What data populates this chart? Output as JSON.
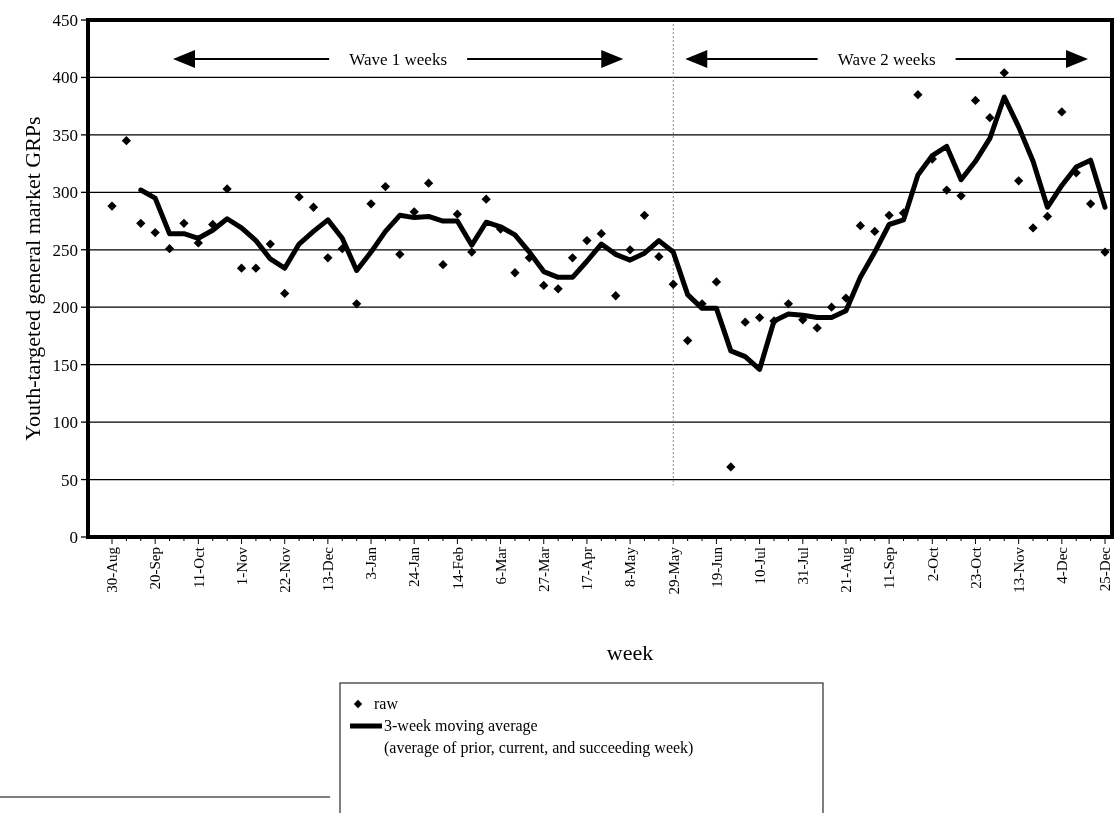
{
  "chart_data": {
    "type": "scatter",
    "xlabel": "week",
    "ylabel": "Youth-targeted general market GRPs",
    "categories": [
      "30-Aug",
      null,
      null,
      "20-Sep",
      null,
      null,
      "11-Oct",
      null,
      null,
      "1-Nov",
      null,
      null,
      "22-Nov",
      null,
      null,
      "13-Dec",
      null,
      null,
      "3-Jan",
      null,
      null,
      "24-Jan",
      null,
      null,
      "14-Feb",
      null,
      null,
      "6-Mar",
      null,
      null,
      "27-Mar",
      null,
      null,
      "17-Apr",
      null,
      null,
      "8-May",
      null,
      null,
      "29-May",
      null,
      null,
      "19-Jun",
      null,
      null,
      "10-Jul",
      null,
      null,
      "31-Jul",
      null,
      null,
      "21-Aug",
      null,
      null,
      "11-Sep",
      null,
      null,
      "2-Oct",
      null,
      null,
      "23-Oct",
      null,
      null,
      "13-Nov",
      null,
      null,
      "4-Dec",
      null,
      null,
      "25-Dec"
    ],
    "series": [
      {
        "name": "raw",
        "marker": "diamond",
        "color": "#000000",
        "values": [
          288,
          345,
          273,
          265,
          251,
          273,
          256,
          272,
          303,
          234,
          234,
          255,
          212,
          296,
          287,
          243,
          251,
          203,
          290,
          305,
          246,
          283,
          308,
          237,
          281,
          248,
          294,
          268,
          230,
          243,
          219,
          216,
          243,
          258,
          264,
          210,
          250,
          280,
          244,
          220,
          171,
          203,
          222,
          61,
          187,
          191,
          188,
          203,
          189,
          182,
          200,
          208,
          271,
          266,
          280,
          282,
          385,
          329,
          302,
          297,
          380,
          365,
          404,
          310,
          269,
          279,
          370,
          317,
          290,
          248
        ]
      },
      {
        "name": "3-week moving average\n(average of prior, current, and succeeding week)",
        "type": "line",
        "marker": "none",
        "line_style": "solid",
        "color": "#000000",
        "values": [
          null,
          null,
          302,
          295,
          264,
          264,
          260,
          267,
          277,
          269,
          258,
          242,
          234,
          255,
          266,
          276,
          260,
          232,
          248,
          266,
          280,
          278,
          279,
          275,
          275,
          254,
          274,
          270,
          263,
          248,
          231,
          226,
          226,
          240,
          255,
          246,
          241,
          247,
          258,
          248,
          211,
          199,
          199,
          162,
          157,
          146,
          188,
          194,
          193,
          191,
          191,
          197,
          226,
          248,
          272,
          276,
          315,
          332,
          340,
          311,
          327,
          347,
          383,
          357,
          327,
          287,
          306,
          322,
          328,
          287
        ]
      }
    ],
    "ylim": [
      0,
      450
    ],
    "yticks": [
      0,
      50,
      100,
      150,
      200,
      250,
      300,
      350,
      400,
      450
    ],
    "grid": "y",
    "legend": "bottom",
    "ref_lines": [
      {
        "axis": "x",
        "value": "29-May",
        "line_style": "dotted",
        "color": "#888888"
      }
    ],
    "annotations": [
      "Wave 1 weeks",
      "Wave 2 weeks"
    ]
  }
}
